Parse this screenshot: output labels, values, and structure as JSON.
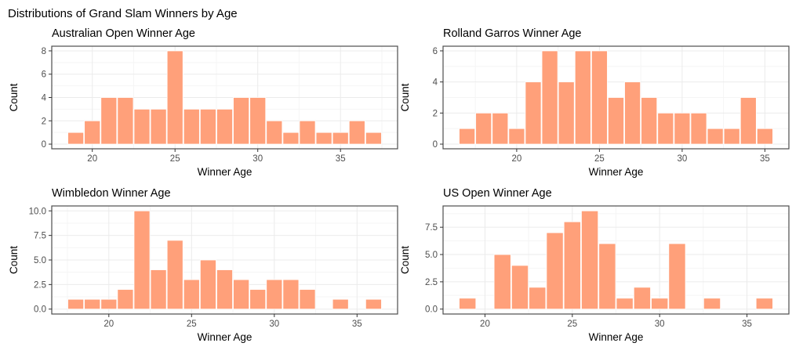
{
  "figure": {
    "title": "Distributions of Grand Slam Winners by Age",
    "background": "#FFFFFF"
  },
  "colors": {
    "bar_fill": "#FFA07A",
    "bar_border": "#FFFFFF",
    "grid_major": "#EBEBEB",
    "grid_minor": "#F5F5F5",
    "panel_border": "#4D4D4D",
    "panel_bg": "#FFFFFF",
    "tick_mark": "#333333",
    "tick_label": "#4D4D4D",
    "text": "#000000"
  },
  "chart_data": [
    {
      "type": "bar",
      "title": "Australian Open Winner Age",
      "xlabel": "Winner Age",
      "ylabel": "Count",
      "bin_width": 1,
      "x": [
        19,
        20,
        21,
        22,
        23,
        24,
        25,
        26,
        27,
        28,
        29,
        30,
        31,
        32,
        33,
        34,
        35,
        36,
        37
      ],
      "counts": [
        1,
        2,
        4,
        4,
        3,
        3,
        8,
        3,
        3,
        3,
        4,
        4,
        2,
        1,
        2,
        1,
        1,
        2,
        1
      ],
      "x_ticks": [
        20,
        25,
        30,
        35
      ],
      "y_ticks": [
        0,
        2,
        4,
        6,
        8
      ],
      "y_tick_labels": [
        "0",
        "2",
        "4",
        "6",
        "8"
      ],
      "xlim": [
        17.55,
        38.45
      ],
      "ylim": [
        -0.4,
        8.4
      ],
      "grid": "major+minor",
      "legend": "none"
    },
    {
      "type": "bar",
      "title": "Rolland Garros Winner Age",
      "xlabel": "Winner Age",
      "ylabel": "Count",
      "bin_width": 1,
      "x": [
        17,
        18,
        19,
        20,
        21,
        22,
        23,
        24,
        25,
        26,
        27,
        28,
        29,
        30,
        31,
        32,
        33,
        34,
        35
      ],
      "counts": [
        1,
        2,
        2,
        1,
        4,
        6,
        4,
        6,
        6,
        3,
        4,
        3,
        2,
        2,
        2,
        1,
        1,
        3,
        1
      ],
      "x_ticks": [
        20,
        25,
        30,
        35
      ],
      "y_ticks": [
        0,
        2,
        4,
        6
      ],
      "y_tick_labels": [
        "0",
        "2",
        "4",
        "6"
      ],
      "xlim": [
        15.55,
        36.45
      ],
      "ylim": [
        -0.3,
        6.3
      ],
      "grid": "major+minor",
      "legend": "none"
    },
    {
      "type": "bar",
      "title": "Wimbledon Winner Age",
      "xlabel": "Winner Age",
      "ylabel": "Count",
      "bin_width": 1,
      "x": [
        18,
        19,
        20,
        21,
        22,
        23,
        24,
        25,
        26,
        27,
        28,
        29,
        30,
        31,
        32,
        33,
        34,
        35,
        36
      ],
      "counts": [
        1,
        1,
        1,
        2,
        10,
        4,
        7,
        3,
        5,
        4,
        3,
        2,
        3,
        3,
        2,
        0,
        1,
        0,
        1
      ],
      "x_ticks": [
        20,
        25,
        30,
        35
      ],
      "y_ticks": [
        0,
        2.5,
        5,
        7.5,
        10
      ],
      "y_tick_labels": [
        "0.0",
        "2.5",
        "5.0",
        "7.5",
        "10.0"
      ],
      "xlim": [
        16.55,
        37.45
      ],
      "ylim": [
        -0.5,
        10.5
      ],
      "grid": "major+minor",
      "legend": "none"
    },
    {
      "type": "bar",
      "title": "US Open Winner Age",
      "xlabel": "Winner Age",
      "ylabel": "Count",
      "bin_width": 1,
      "x": [
        19,
        20,
        21,
        22,
        23,
        24,
        25,
        26,
        27,
        28,
        29,
        30,
        31,
        32,
        33,
        34,
        35,
        36
      ],
      "counts": [
        1,
        0,
        5,
        4,
        2,
        7,
        8,
        9,
        6,
        1,
        2,
        1,
        6,
        0,
        1,
        0,
        0,
        1
      ],
      "x_ticks": [
        20,
        25,
        30,
        35
      ],
      "y_ticks": [
        0,
        2.5,
        5,
        7.5
      ],
      "y_tick_labels": [
        "0.0",
        "2.5",
        "5.0",
        "7.5"
      ],
      "xlim": [
        17.6,
        37.4
      ],
      "ylim": [
        -0.45,
        9.45
      ],
      "grid": "major+minor",
      "legend": "none"
    }
  ]
}
